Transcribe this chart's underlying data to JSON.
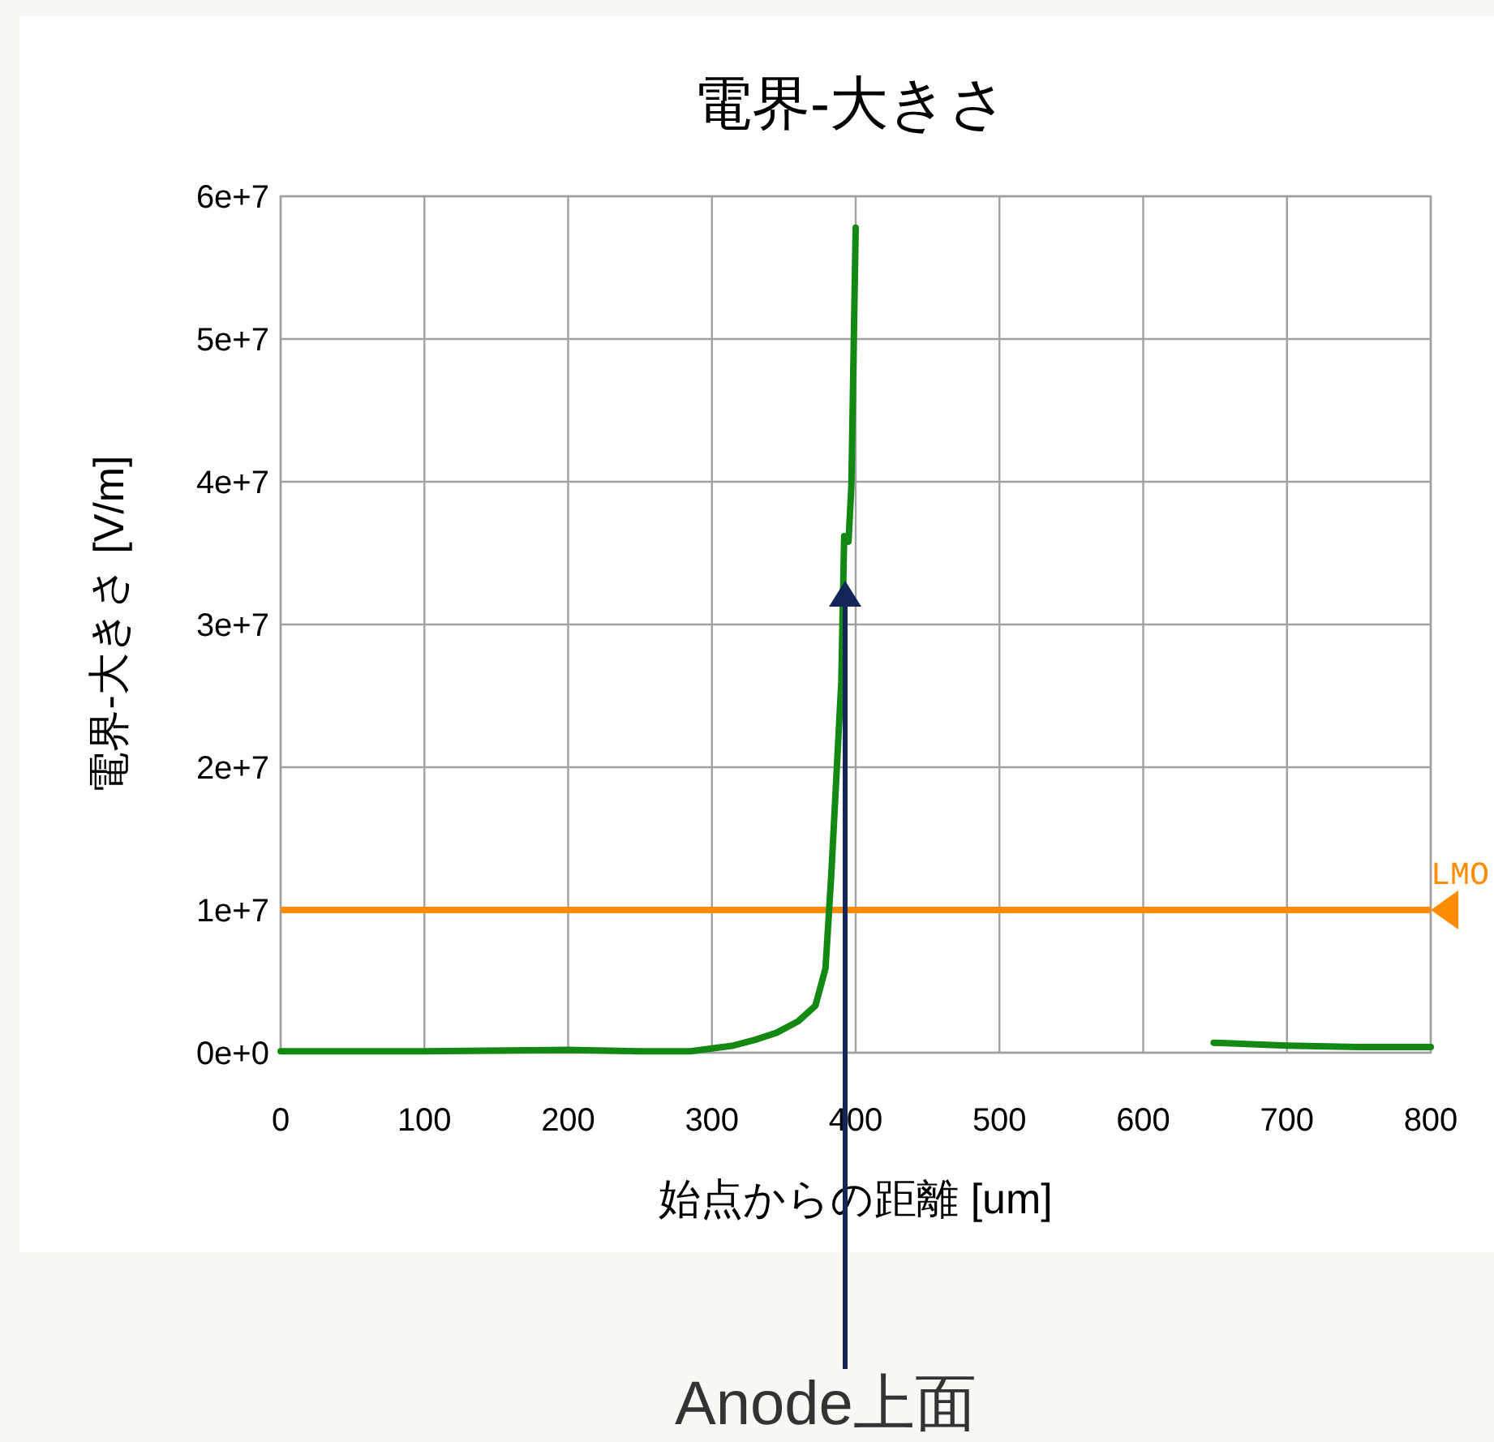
{
  "chart_data": {
    "type": "line",
    "title": "電界-大きさ",
    "xlabel": "始点からの距離 [um]",
    "ylabel": "電界-大きさ [V/m]",
    "series": [
      {
        "color": "#138813",
        "x": [
          0,
          100,
          200,
          250,
          285,
          300,
          315,
          330,
          345,
          360,
          372,
          379,
          383,
          390,
          392,
          395,
          397,
          400
        ],
        "values": [
          100000,
          100000,
          200000,
          100000,
          100000,
          300000,
          500000,
          900000,
          1400000,
          2200000,
          3300000,
          5900000,
          12400000,
          26000000,
          36200000,
          35800000,
          39700000,
          57800000
        ]
      },
      {
        "color": "#138813",
        "x": [
          649,
          675,
          700,
          750,
          800
        ],
        "values": [
          700000,
          600000,
          500000,
          400000,
          400000
        ]
      }
    ],
    "xlim": [
      0,
      800
    ],
    "ylim": [
      0,
      60000000
    ],
    "xticks": [
      0,
      100,
      200,
      300,
      400,
      500,
      600,
      700,
      800
    ],
    "yticks": [
      {
        "value": 0,
        "label": "0e+0"
      },
      {
        "value": 10000000,
        "label": "1e+7"
      },
      {
        "value": 20000000,
        "label": "2e+7"
      },
      {
        "value": 30000000,
        "label": "3e+7"
      },
      {
        "value": 40000000,
        "label": "4e+7"
      },
      {
        "value": 50000000,
        "label": "5e+7"
      },
      {
        "value": 60000000,
        "label": "6e+7"
      }
    ],
    "grid": true,
    "ref_lines": [
      {
        "axis": "y",
        "value": 10000000,
        "label": "LMO",
        "color": "#ff8c00"
      }
    ],
    "annotations": [
      "Anode上面"
    ]
  }
}
